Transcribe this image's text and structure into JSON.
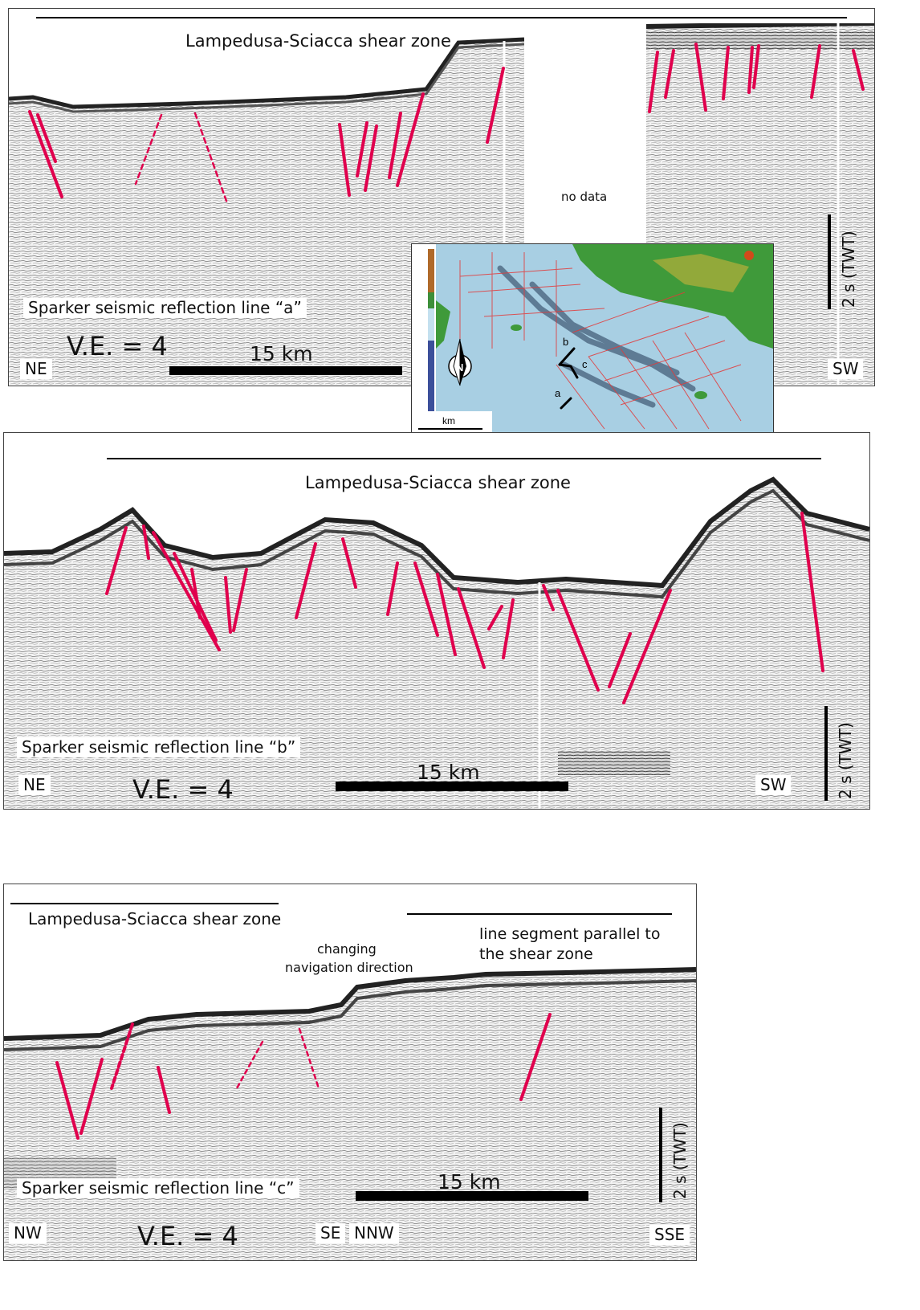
{
  "panel_a": {
    "title": "Lampedusa-Sciacca shear zone",
    "line_label": "Sparker seismic reflection line “a”",
    "ve": "V.E. = 4",
    "scale": "15 km",
    "left_dir": "NE",
    "right_dir": "SW",
    "no_data": "no data",
    "twt": "2 s (TWT)"
  },
  "panel_b": {
    "title": "Lampedusa-Sciacca shear zone",
    "line_label": "Sparker seismic reflection line “b”",
    "ve": "V.E. = 4",
    "scale": "15 km",
    "left_dir": "NE",
    "right_dir": "SW",
    "twt": "2 s (TWT)"
  },
  "panel_c": {
    "title": "Lampedusa-Sciacca shear zone",
    "note_change": [
      "changing",
      "navigation direction"
    ],
    "note_parallel": [
      "line segment parallel to",
      "the shear zone"
    ],
    "line_label": "Sparker seismic reflection line “c”",
    "ve": "V.E. = 4",
    "scale": "15 km",
    "dirs": [
      "NW",
      "SE",
      "NNW",
      "SSE"
    ],
    "twt": "2 s (TWT)"
  },
  "inset_map": {
    "line_labels": [
      "a",
      "b",
      "c"
    ],
    "scale_unit": "km",
    "compass_letter": "N"
  },
  "colors": {
    "fault": "#e0004d",
    "scale_bar": "#000000",
    "sea": "#9fc7dd",
    "land": "#3f9a3a"
  },
  "icons": [
    "north-arrow-icon"
  ]
}
